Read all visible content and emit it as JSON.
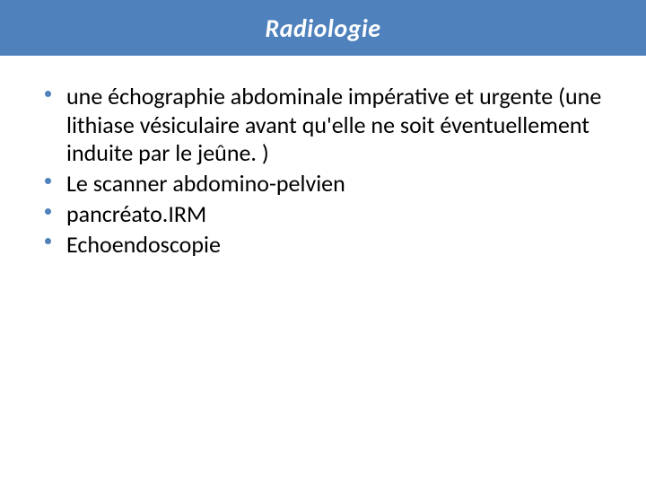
{
  "slide": {
    "title": "Radiologie",
    "title_bar_color": "#4f81bd",
    "title_text_color": "#ffffff",
    "title_fontsize": 28,
    "background_color": "#ffffff",
    "bullet_color": "#4f81bd",
    "body_text_color": "#000000",
    "body_fontsize": 26,
    "body_line_height": 1.22,
    "bullets": [
      {
        "text": "une échographie abdominale impérative et urgente (une lithiase vésiculaire avant qu'elle ne soit éventuellement induite par le jeûne. )"
      },
      {
        "text": "Le scanner abdomino-pelvien"
      },
      {
        "text": "pancréato.IRM"
      },
      {
        "text": "Echoendoscopie"
      }
    ]
  }
}
